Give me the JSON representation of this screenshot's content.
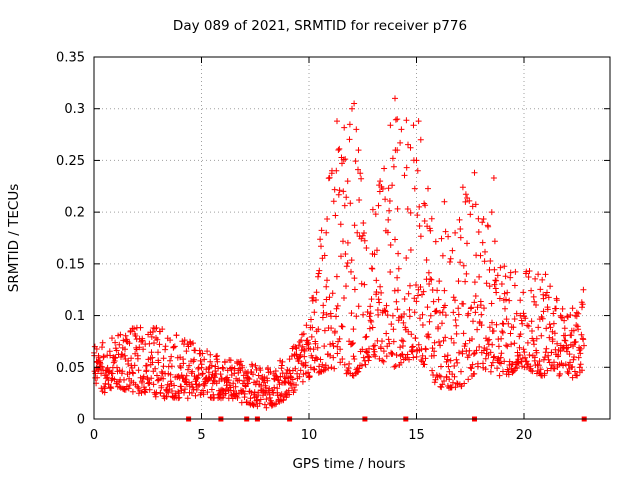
{
  "chart_data": {
    "type": "scatter",
    "title": "Day 089 of 2021, SRMTID for receiver p776",
    "xlabel": "GPS time / hours",
    "ylabel": "SRMTID / TECUs",
    "xlim": [
      0,
      24
    ],
    "ylim": [
      0,
      0.35
    ],
    "xticks": [
      "0",
      "5",
      "10",
      "15",
      "20"
    ],
    "yticks": [
      "0",
      "0.05",
      "0.1",
      "0.15",
      "0.2",
      "0.25",
      "0.3",
      "0.35"
    ],
    "grid": true,
    "marker": "+",
    "color": "#ff0000",
    "zero_markers_x": [
      4.4,
      5.9,
      7.1,
      7.6,
      9.1,
      12.6,
      14.5,
      17.7,
      22.8
    ],
    "series": [
      {
        "name": "SRMTID",
        "envelope_hours": [
          0,
          1,
          2,
          3,
          4,
          5,
          6,
          7,
          8,
          9,
          10,
          11,
          12,
          13,
          14,
          15,
          16,
          17,
          18,
          19,
          20,
          21,
          22,
          22.8
        ],
        "envelope_low": [
          0.02,
          0.03,
          0.025,
          0.02,
          0.02,
          0.02,
          0.02,
          0.015,
          0.01,
          0.02,
          0.04,
          0.05,
          0.04,
          0.06,
          0.05,
          0.06,
          0.03,
          0.03,
          0.05,
          0.04,
          0.05,
          0.04,
          0.04,
          0.04
        ],
        "envelope_high": [
          0.07,
          0.08,
          0.09,
          0.09,
          0.08,
          0.07,
          0.06,
          0.055,
          0.05,
          0.06,
          0.1,
          0.25,
          0.3,
          0.2,
          0.31,
          0.29,
          0.17,
          0.24,
          0.2,
          0.16,
          0.15,
          0.14,
          0.1,
          0.13
        ],
        "highlights": [
          [
            11.3,
            0.288
          ],
          [
            12.0,
            0.3
          ],
          [
            12.1,
            0.305
          ],
          [
            12.2,
            0.28
          ],
          [
            12.3,
            0.26
          ],
          [
            14.0,
            0.31
          ],
          [
            14.1,
            0.29
          ],
          [
            14.3,
            0.28
          ],
          [
            15.1,
            0.288
          ],
          [
            15.2,
            0.27
          ],
          [
            15.0,
            0.25
          ],
          [
            17.7,
            0.238
          ],
          [
            18.6,
            0.233
          ],
          [
            18.5,
            0.2
          ],
          [
            16.3,
            0.21
          ],
          [
            14.1,
            0.26
          ],
          [
            13.3,
            0.22
          ],
          [
            11.8,
            0.23
          ],
          [
            10.8,
            0.18
          ]
        ]
      }
    ]
  }
}
